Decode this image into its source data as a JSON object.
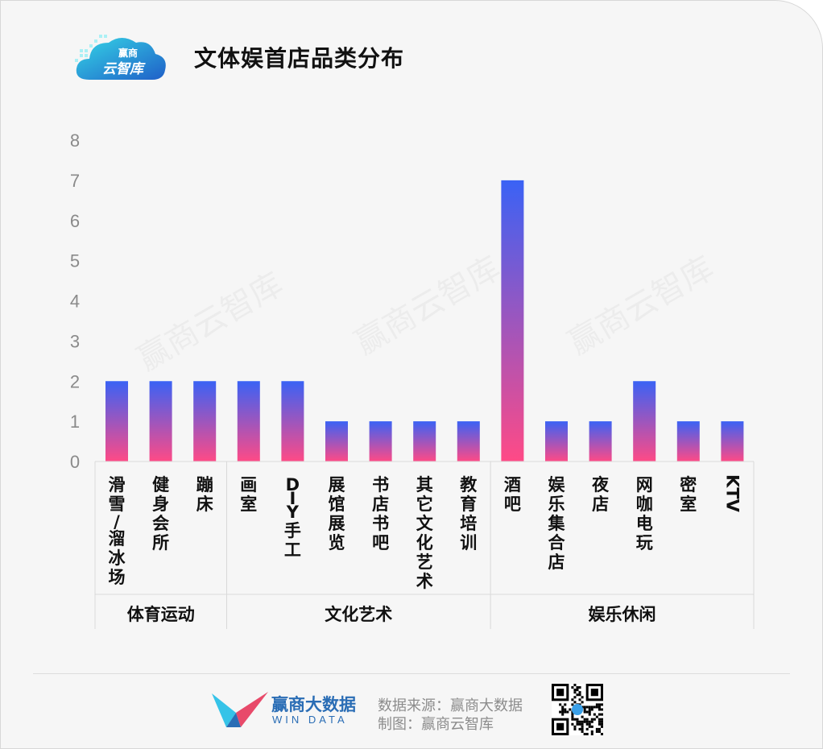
{
  "header": {
    "logo_text_top": "赢商",
    "logo_text_bottom": "云智库",
    "title": "文体娱首店品类分布"
  },
  "watermark": "赢商云智库",
  "colors": {
    "bar_top": "#3a62f5",
    "bar_bottom": "#ff4a86",
    "axis_text": "#8a8a8a",
    "brand_blue": "#2a6db5"
  },
  "chart_data": {
    "type": "bar",
    "title": "文体娱首店品类分布",
    "xlabel": "",
    "ylabel": "",
    "ylim": [
      0,
      8
    ],
    "yticks": [
      0,
      1,
      2,
      3,
      4,
      5,
      6,
      7,
      8
    ],
    "grid": false,
    "legend": "none",
    "categories": [
      "滑雪/溜冰场",
      "健身会所",
      "蹦床",
      "画室",
      "DIY手工",
      "展馆展览",
      "书店书吧",
      "其它文化艺术",
      "教育培训",
      "酒吧",
      "娱乐集合店",
      "夜店",
      "网咖电玩",
      "密室",
      "KTV"
    ],
    "values": [
      2,
      2,
      2,
      2,
      2,
      1,
      1,
      1,
      1,
      7,
      1,
      1,
      2,
      1,
      1
    ],
    "groups": [
      {
        "name": "体育运动",
        "start": 0,
        "end": 2
      },
      {
        "name": "文化艺术",
        "start": 3,
        "end": 8
      },
      {
        "name": "娱乐休闲",
        "start": 9,
        "end": 14
      }
    ]
  },
  "footer": {
    "brand_cn": "赢商大数据",
    "brand_en": "WIN DATA",
    "source": "数据来源：赢商大数据",
    "maker": "制图：赢商云智库"
  }
}
